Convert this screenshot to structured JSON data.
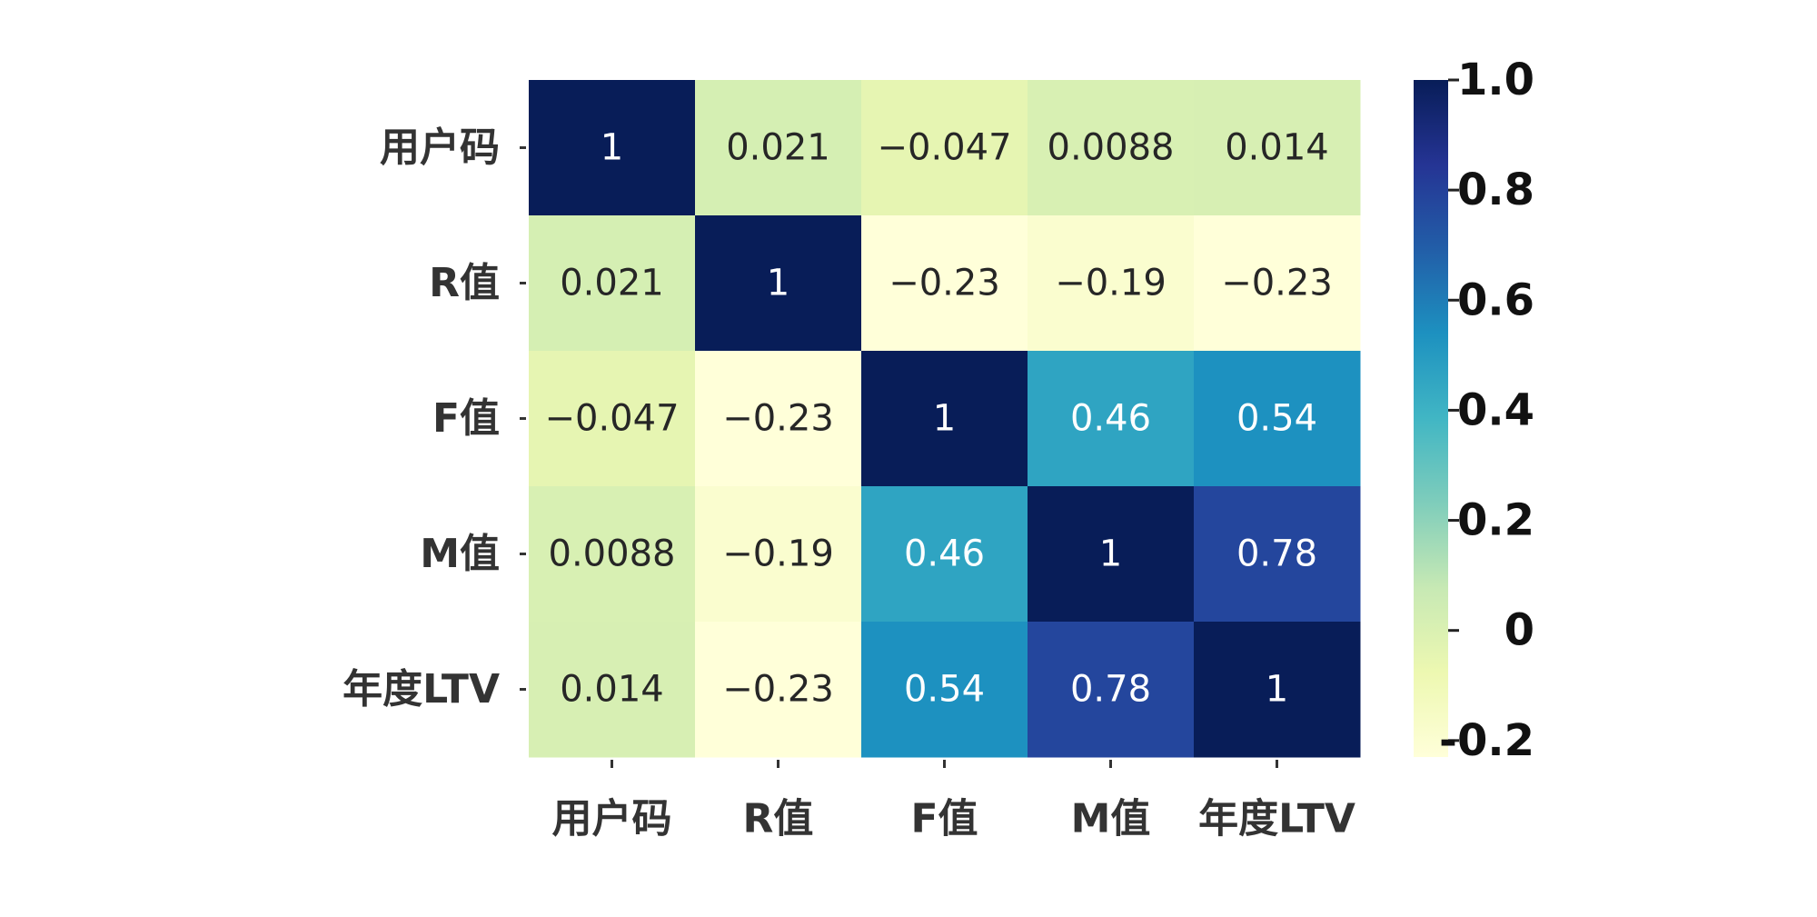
{
  "chart_data": {
    "type": "heatmap",
    "title": "",
    "xlabel": "",
    "ylabel": "",
    "x_categories": [
      "用户码",
      "R值",
      "F值",
      "M值",
      "年度LTV"
    ],
    "y_categories": [
      "用户码",
      "R值",
      "F值",
      "M值",
      "年度LTV"
    ],
    "values": [
      [
        1,
        0.021,
        -0.047,
        0.0088,
        0.014
      ],
      [
        0.021,
        1,
        -0.23,
        -0.19,
        -0.23
      ],
      [
        -0.047,
        -0.23,
        1,
        0.46,
        0.54
      ],
      [
        0.0088,
        -0.19,
        0.46,
        1,
        0.78
      ],
      [
        0.014,
        -0.23,
        0.54,
        0.78,
        1
      ]
    ],
    "value_labels": [
      [
        "1",
        "0.021",
        "−0.047",
        "0.0088",
        "0.014"
      ],
      [
        "0.021",
        "1",
        "−0.23",
        "−0.19",
        "−0.23"
      ],
      [
        "−0.047",
        "−0.23",
        "1",
        "0.46",
        "0.54"
      ],
      [
        "0.0088",
        "−0.19",
        "0.46",
        "1",
        "0.78"
      ],
      [
        "0.014",
        "−0.23",
        "0.54",
        "0.78",
        "1"
      ]
    ],
    "colorscale": "YlGnBu",
    "vmin": -0.23,
    "vmax": 1.0,
    "colorbar": {
      "ticks": [
        1.0,
        0.8,
        0.6,
        0.4,
        0.2,
        0,
        -0.2
      ],
      "tick_labels": [
        "1.0",
        "0.8",
        "0.6",
        "0.4",
        "0.2",
        "0",
        "-0.2"
      ],
      "position": "right"
    },
    "grid": false
  }
}
